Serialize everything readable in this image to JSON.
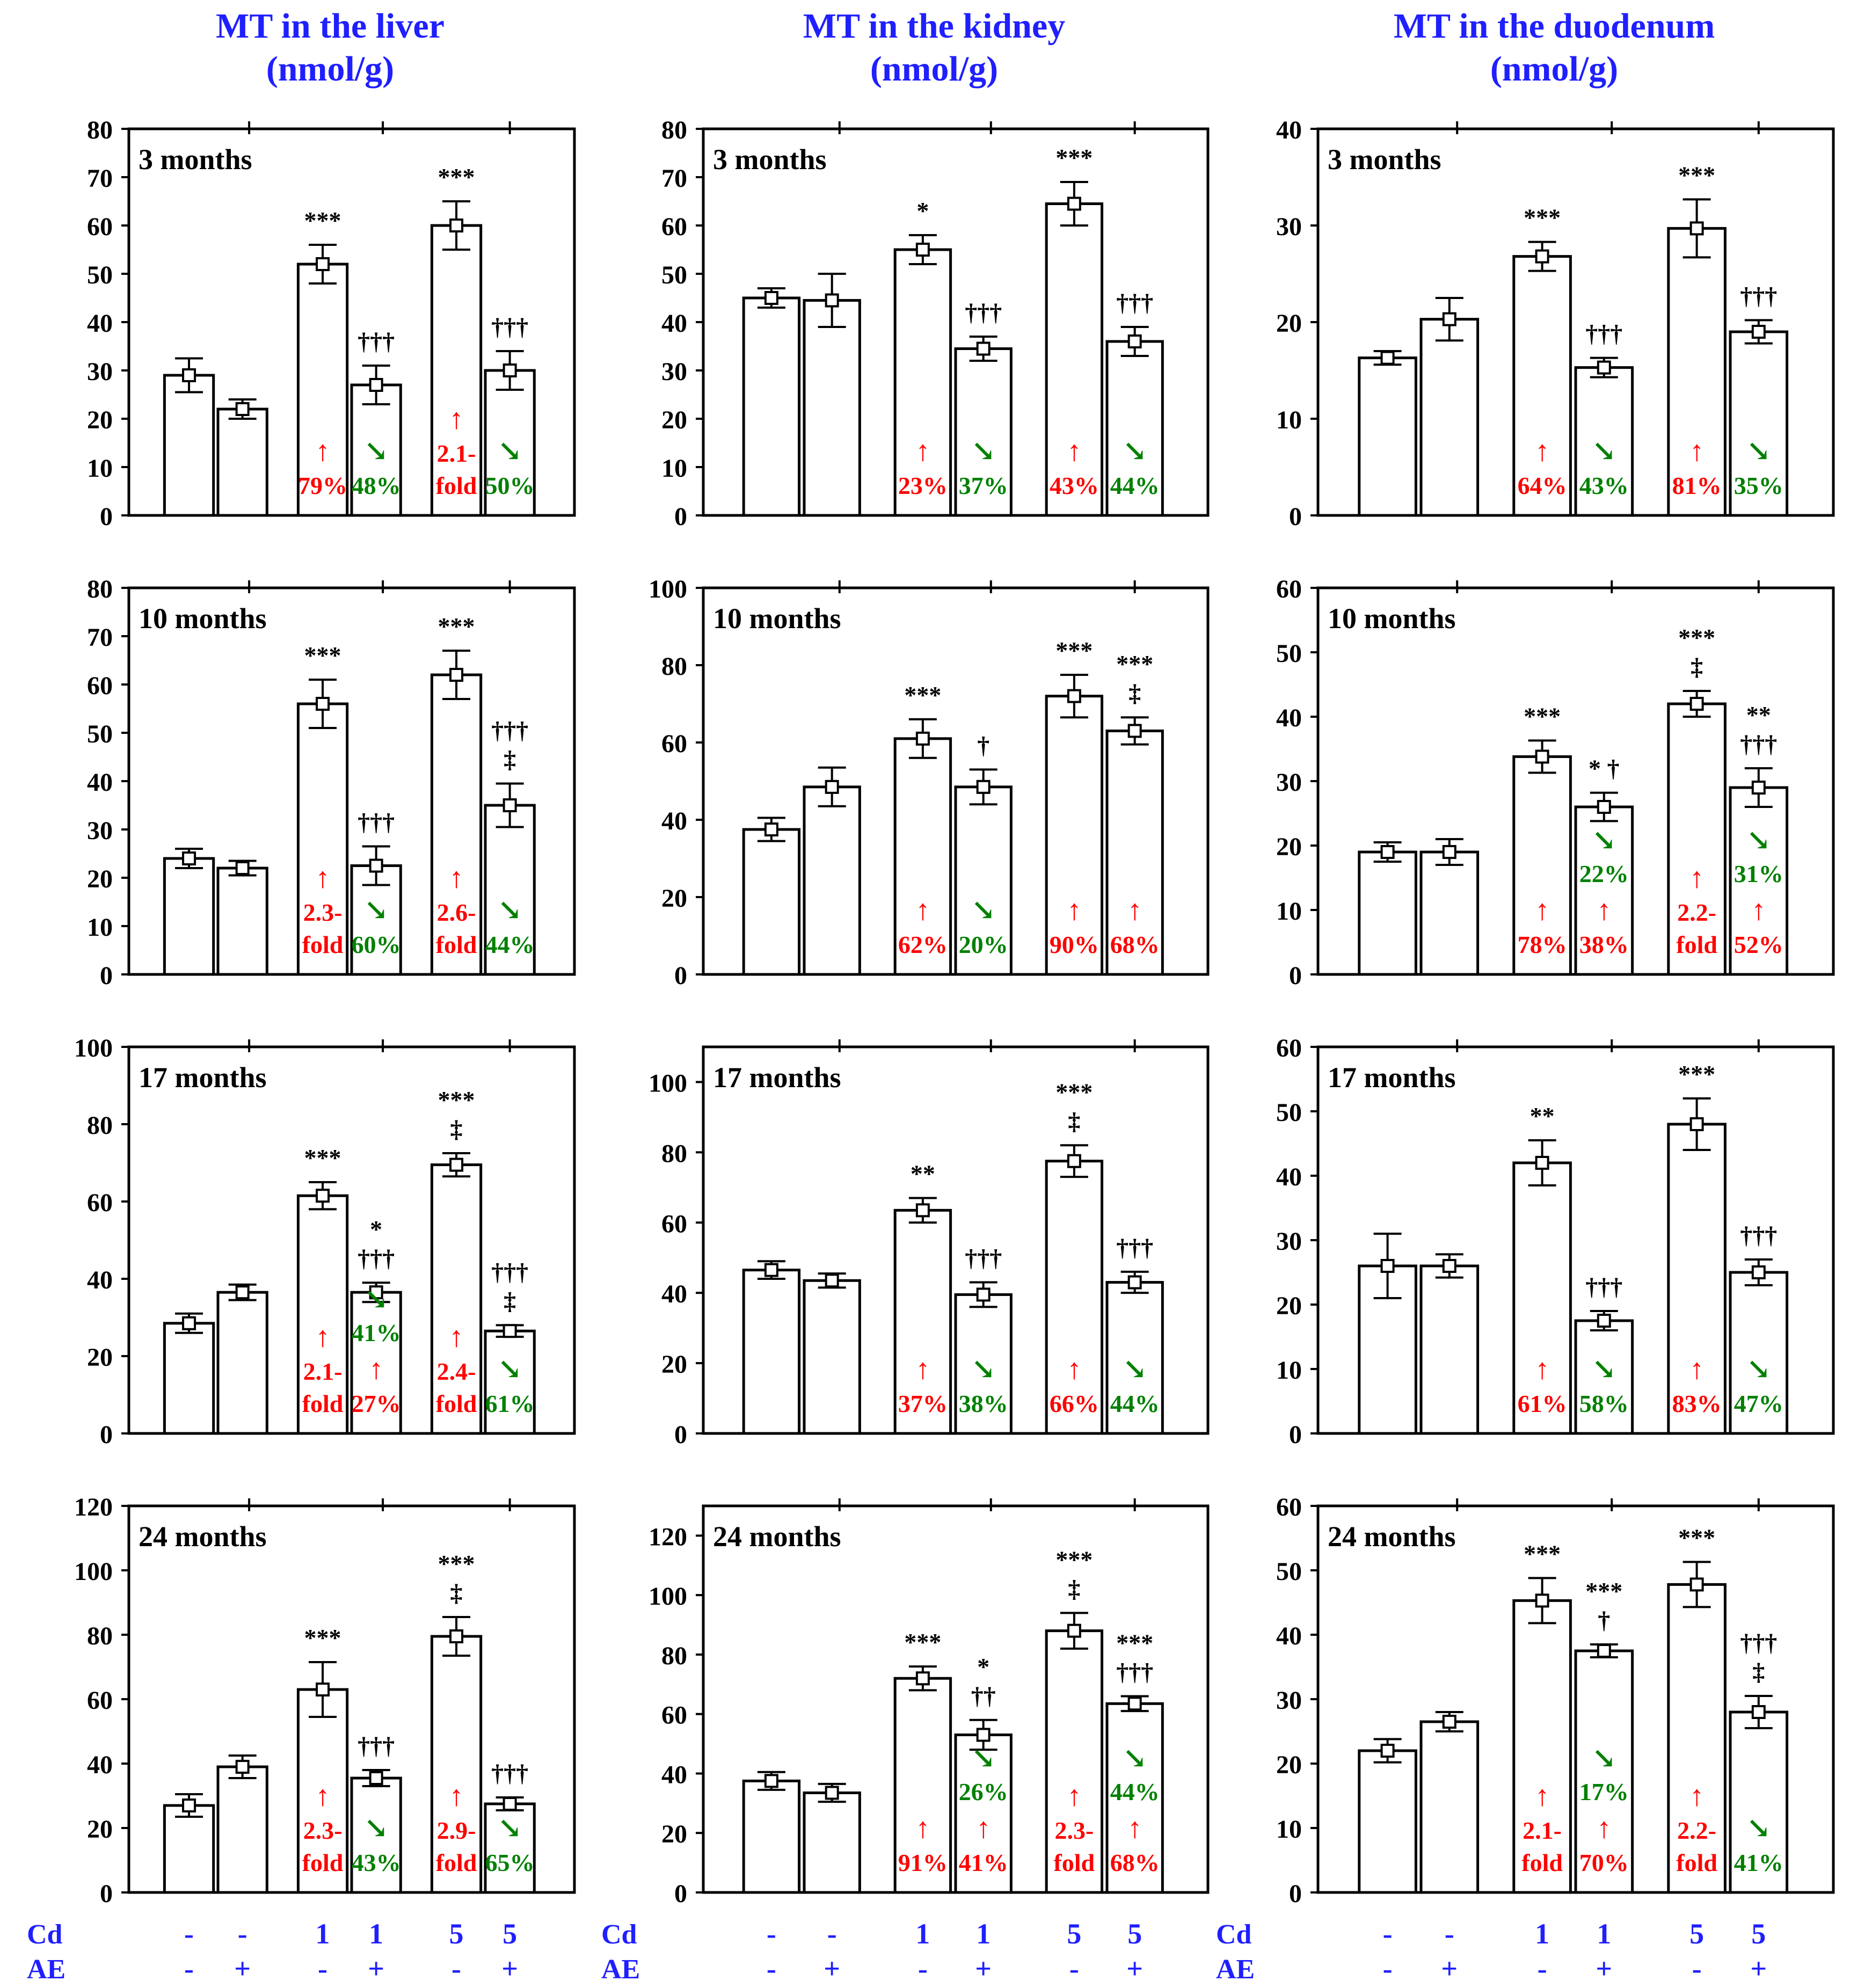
{
  "colors": {
    "title": "#1f1fff",
    "increase": "#ff0000",
    "decrease": "#008000",
    "axis": "#000000",
    "label_blue": "#1f1fff"
  },
  "column_titles": [
    {
      "line1": "MT in the liver",
      "line2": "(nmol/g)"
    },
    {
      "line1": "MT in the kidney",
      "line2": "(nmol/g)"
    },
    {
      "line1": "MT in the duodenum",
      "line2": "(nmol/g)"
    }
  ],
  "x_axis": {
    "row_labels": [
      "Cd",
      "AE"
    ],
    "cd": [
      "-",
      "-",
      "1",
      "1",
      "5",
      "5"
    ],
    "ae": [
      "-",
      "+",
      "-",
      "+",
      "-",
      "+"
    ]
  },
  "chart_data": [
    {
      "type": "bar",
      "organ": "liver",
      "period": "3 months",
      "ylim": [
        0,
        80
      ],
      "ticks": [
        0,
        10,
        20,
        30,
        40,
        50,
        60,
        70,
        80
      ],
      "values": [
        29,
        22,
        52,
        27,
        60,
        30
      ],
      "errors": [
        3.5,
        2,
        4,
        4,
        5,
        4
      ],
      "sig": [
        "",
        "",
        "***",
        "†††",
        "***",
        "†††"
      ],
      "notes": [
        null,
        null,
        {
          "pre": "",
          "dir": "up",
          "text": "79%"
        },
        {
          "pre": "",
          "dir": "down",
          "text": "48%"
        },
        {
          "pre": "",
          "dir": "up",
          "text": "2.1-|fold"
        },
        {
          "pre": "",
          "dir": "down",
          "text": "50%"
        }
      ]
    },
    {
      "type": "bar",
      "organ": "kidney",
      "period": "3 months",
      "ylim": [
        0,
        80
      ],
      "ticks": [
        0,
        10,
        20,
        30,
        40,
        50,
        60,
        70,
        80
      ],
      "values": [
        45,
        44.5,
        55,
        34.5,
        64.5,
        36
      ],
      "errors": [
        2,
        5.5,
        3,
        2.5,
        4.5,
        3
      ],
      "sig": [
        "",
        "",
        "*",
        "†††",
        "***",
        "†††"
      ],
      "notes": [
        null,
        null,
        {
          "pre": "",
          "dir": "up",
          "text": "23%"
        },
        {
          "pre": "",
          "dir": "down",
          "text": "37%"
        },
        {
          "pre": "",
          "dir": "up",
          "text": "43%"
        },
        {
          "pre": "",
          "dir": "down",
          "text": "44%"
        }
      ]
    },
    {
      "type": "bar",
      "organ": "duodenum",
      "period": "3 months",
      "ylim": [
        0,
        40
      ],
      "ticks": [
        0,
        10,
        20,
        30,
        40
      ],
      "values": [
        16.3,
        20.3,
        26.8,
        15.3,
        29.7,
        19
      ],
      "errors": [
        0.7,
        2.2,
        1.5,
        1,
        3,
        1.2
      ],
      "sig": [
        "",
        "",
        "***",
        "†††",
        "***",
        "†††"
      ],
      "notes": [
        null,
        null,
        {
          "pre": "",
          "dir": "up",
          "text": "64%"
        },
        {
          "pre": "",
          "dir": "down",
          "text": "43%"
        },
        {
          "pre": "",
          "dir": "up",
          "text": "81%"
        },
        {
          "pre": "",
          "dir": "down",
          "text": "35%"
        }
      ]
    },
    {
      "type": "bar",
      "organ": "liver",
      "period": "10 months",
      "ylim": [
        0,
        80
      ],
      "ticks": [
        0,
        10,
        20,
        30,
        40,
        50,
        60,
        70,
        80
      ],
      "values": [
        24,
        22,
        56,
        22.5,
        62,
        35
      ],
      "errors": [
        2,
        1.5,
        5,
        4,
        5,
        4.5
      ],
      "sig": [
        "",
        "",
        "***",
        "†††",
        "***",
        "†††|‡"
      ],
      "notes": [
        null,
        null,
        {
          "pre": "",
          "dir": "up",
          "text": "2.3-|fold"
        },
        {
          "pre": "",
          "dir": "down",
          "text": "60%"
        },
        {
          "pre": "",
          "dir": "up",
          "text": "2.6-|fold"
        },
        {
          "pre": "",
          "dir": "down",
          "text": "44%"
        }
      ]
    },
    {
      "type": "bar",
      "organ": "kidney",
      "period": "10 months",
      "ylim": [
        0,
        100
      ],
      "ticks": [
        0,
        20,
        40,
        60,
        80,
        100
      ],
      "values": [
        37.5,
        48.5,
        61,
        48.5,
        72,
        63
      ],
      "errors": [
        3,
        5,
        5,
        4.5,
        5.5,
        3.5
      ],
      "sig": [
        "",
        "",
        "***",
        "†",
        "***",
        "***|‡"
      ],
      "notes": [
        null,
        null,
        {
          "pre": "",
          "dir": "up",
          "text": "62%"
        },
        {
          "pre": "",
          "dir": "down",
          "text": "20%"
        },
        {
          "pre": "",
          "dir": "up",
          "text": "90%"
        },
        {
          "pre": "",
          "dir": "up",
          "text": "68%"
        }
      ]
    },
    {
      "type": "bar",
      "organ": "duodenum",
      "period": "10 months",
      "ylim": [
        0,
        60
      ],
      "ticks": [
        0,
        10,
        20,
        30,
        40,
        50,
        60
      ],
      "values": [
        19,
        19,
        33.8,
        26,
        42,
        29
      ],
      "errors": [
        1.5,
        2,
        2.5,
        2.2,
        2,
        3
      ],
      "sig": [
        "",
        "",
        "***",
        "* †",
        "***|‡",
        "**|†††"
      ],
      "notes": [
        null,
        null,
        {
          "pre": "",
          "dir": "up",
          "text": "78%"
        },
        {
          "pre": "22%",
          "dir": "up",
          "text": "38%"
        },
        {
          "pre": "",
          "dir": "up",
          "text": "2.2-|fold"
        },
        {
          "pre": "31%",
          "dir": "up",
          "text": "52%"
        }
      ]
    },
    {
      "type": "bar",
      "organ": "liver",
      "period": "17 months",
      "ylim": [
        0,
        100
      ],
      "ticks": [
        0,
        20,
        40,
        60,
        80,
        100
      ],
      "values": [
        28.5,
        36.5,
        61.5,
        36.5,
        69.5,
        26.5
      ],
      "errors": [
        2.5,
        2,
        3.5,
        2.5,
        3,
        1.5
      ],
      "sig": [
        "",
        "",
        "***",
        "*|†††",
        "***|‡",
        "†††|‡"
      ],
      "notes": [
        null,
        null,
        {
          "pre": "",
          "dir": "up",
          "text": "2.1-|fold"
        },
        {
          "pre": "41%",
          "dir": "up",
          "text": "27%"
        },
        {
          "pre": "",
          "dir": "up",
          "text": "2.4-|fold"
        },
        {
          "pre": "",
          "dir": "down",
          "text": "61%"
        }
      ]
    },
    {
      "type": "bar",
      "organ": "kidney",
      "period": "17 months",
      "ylim": [
        0,
        110
      ],
      "ticks": [
        0,
        20,
        40,
        60,
        80,
        100
      ],
      "values": [
        46.5,
        43.5,
        63.5,
        39.5,
        77.5,
        43
      ],
      "errors": [
        2.5,
        2,
        3.5,
        3.5,
        4.5,
        3
      ],
      "sig": [
        "",
        "",
        "**",
        "†††",
        "***|‡",
        "†††"
      ],
      "notes": [
        null,
        null,
        {
          "pre": "",
          "dir": "up",
          "text": "37%"
        },
        {
          "pre": "",
          "dir": "down",
          "text": "38%"
        },
        {
          "pre": "",
          "dir": "up",
          "text": "66%"
        },
        {
          "pre": "",
          "dir": "down",
          "text": "44%"
        }
      ]
    },
    {
      "type": "bar",
      "organ": "duodenum",
      "period": "17 months",
      "ylim": [
        0,
        60
      ],
      "ticks": [
        0,
        10,
        20,
        30,
        40,
        50,
        60
      ],
      "values": [
        26,
        26,
        42,
        17.5,
        48,
        25
      ],
      "errors": [
        5,
        1.8,
        3.5,
        1.5,
        4,
        2
      ],
      "sig": [
        "",
        "",
        "**",
        "†††",
        "***",
        "†††"
      ],
      "notes": [
        null,
        null,
        {
          "pre": "",
          "dir": "up",
          "text": "61%"
        },
        {
          "pre": "",
          "dir": "down",
          "text": "58%"
        },
        {
          "pre": "",
          "dir": "up",
          "text": "83%"
        },
        {
          "pre": "",
          "dir": "down",
          "text": "47%"
        }
      ]
    },
    {
      "type": "bar",
      "organ": "liver",
      "period": "24 months",
      "ylim": [
        0,
        120
      ],
      "ticks": [
        0,
        20,
        40,
        60,
        80,
        100,
        120
      ],
      "values": [
        27,
        39,
        63,
        35.5,
        79.5,
        27.5
      ],
      "errors": [
        3.5,
        3.5,
        8.5,
        2.5,
        6,
        2
      ],
      "sig": [
        "",
        "",
        "***",
        "†††",
        "***|‡",
        "†††"
      ],
      "notes": [
        null,
        null,
        {
          "pre": "",
          "dir": "up",
          "text": "2.3-|fold"
        },
        {
          "pre": "",
          "dir": "down",
          "text": "43%"
        },
        {
          "pre": "",
          "dir": "up",
          "text": "2.9-|fold"
        },
        {
          "pre": "",
          "dir": "down",
          "text": "65%"
        }
      ]
    },
    {
      "type": "bar",
      "organ": "kidney",
      "period": "24 months",
      "ylim": [
        0,
        130
      ],
      "ticks": [
        0,
        20,
        40,
        60,
        80,
        100,
        120
      ],
      "values": [
        37.5,
        33.5,
        72,
        53,
        88,
        63.5
      ],
      "errors": [
        3,
        3,
        4,
        5,
        6,
        2.5
      ],
      "sig": [
        "",
        "",
        "***",
        "*|††",
        "***|‡",
        "***|†††"
      ],
      "notes": [
        null,
        null,
        {
          "pre": "",
          "dir": "up",
          "text": "91%"
        },
        {
          "pre": "26%",
          "dir": "up",
          "text": "41%"
        },
        {
          "pre": "",
          "dir": "up",
          "text": "2.3-|fold"
        },
        {
          "pre": "44%",
          "dir": "up",
          "text": "68%"
        }
      ]
    },
    {
      "type": "bar",
      "organ": "duodenum",
      "period": "24 months",
      "ylim": [
        0,
        60
      ],
      "ticks": [
        0,
        10,
        20,
        30,
        40,
        50,
        60
      ],
      "values": [
        22,
        26.5,
        45.3,
        37.5,
        47.8,
        28
      ],
      "errors": [
        1.8,
        1.5,
        3.5,
        1,
        3.5,
        2.5
      ],
      "sig": [
        "",
        "",
        "***",
        "***|†",
        "***",
        "†††|‡"
      ],
      "notes": [
        null,
        null,
        {
          "pre": "",
          "dir": "up",
          "text": "2.1-|fold"
        },
        {
          "pre": "17%",
          "dir": "up",
          "text": "70%"
        },
        {
          "pre": "",
          "dir": "up",
          "text": "2.2-|fold"
        },
        {
          "pre": "",
          "dir": "down",
          "text": "41%"
        }
      ]
    }
  ]
}
